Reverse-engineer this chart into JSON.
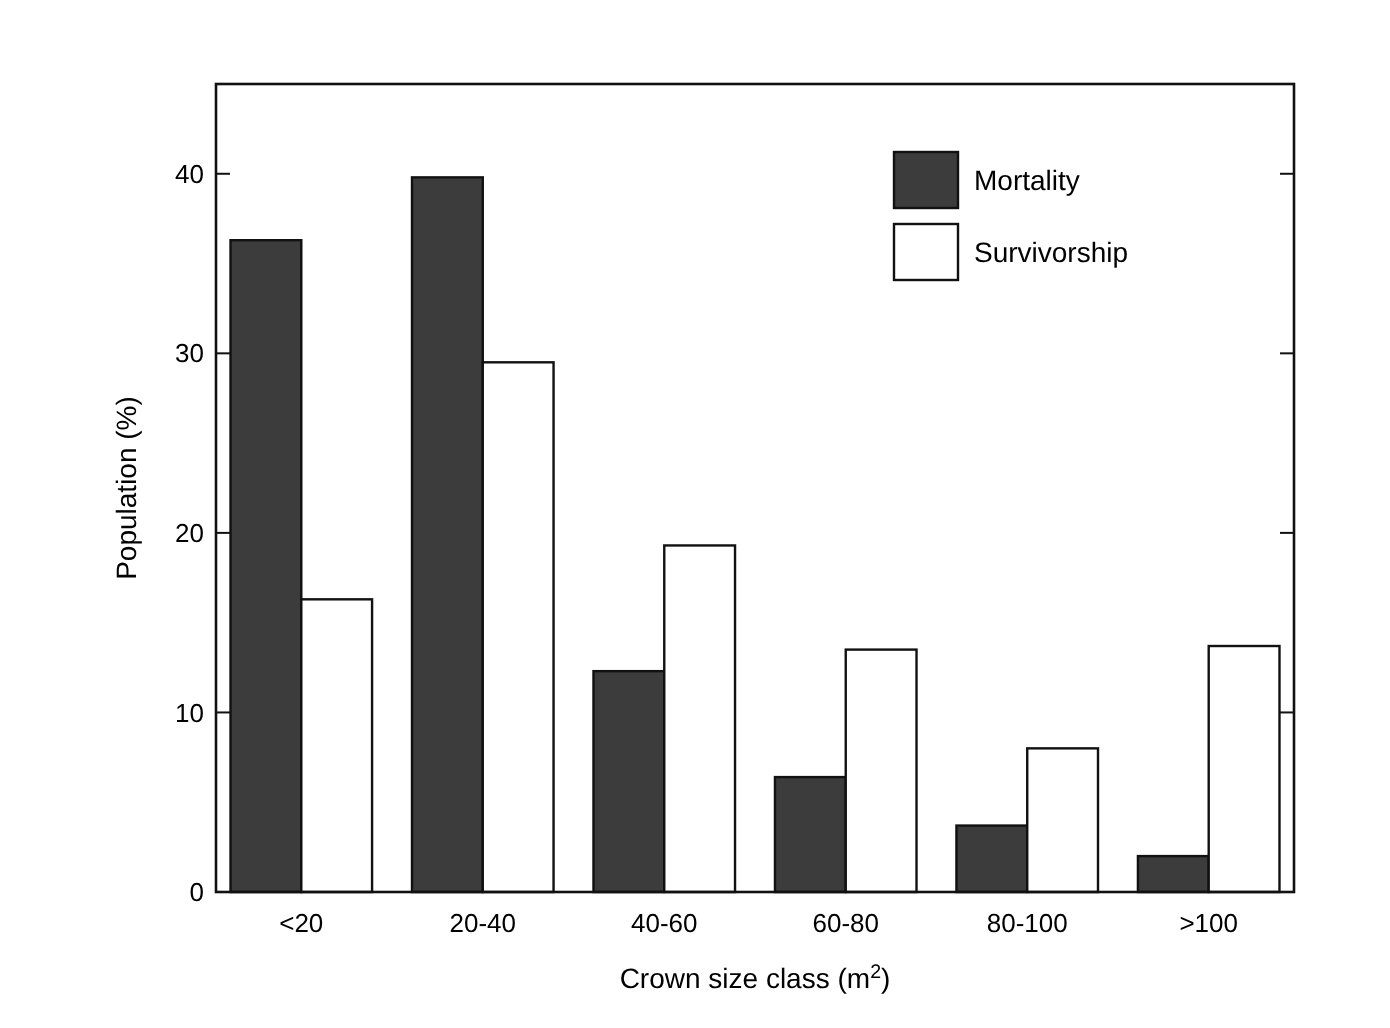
{
  "chart_data": {
    "type": "bar",
    "xlabel": "Crown size class (m$^{2}$)",
    "ylabel": "Population (%)",
    "categories": [
      "<20",
      "20-40",
      "40-60",
      "60-80",
      "80-100",
      ">100"
    ],
    "series": [
      {
        "name": "Mortality",
        "color": "#3c3c3c",
        "values": [
          36.3,
          39.8,
          12.3,
          6.4,
          3.7,
          2.0
        ]
      },
      {
        "name": "Survivorship",
        "color": "#ffffff",
        "values": [
          16.3,
          29.5,
          19.3,
          13.5,
          8.0,
          13.7
        ]
      }
    ],
    "ylim": [
      0,
      45
    ],
    "yticks": [
      0,
      10,
      20,
      30,
      40
    ],
    "grid": false,
    "legend": "top right"
  }
}
